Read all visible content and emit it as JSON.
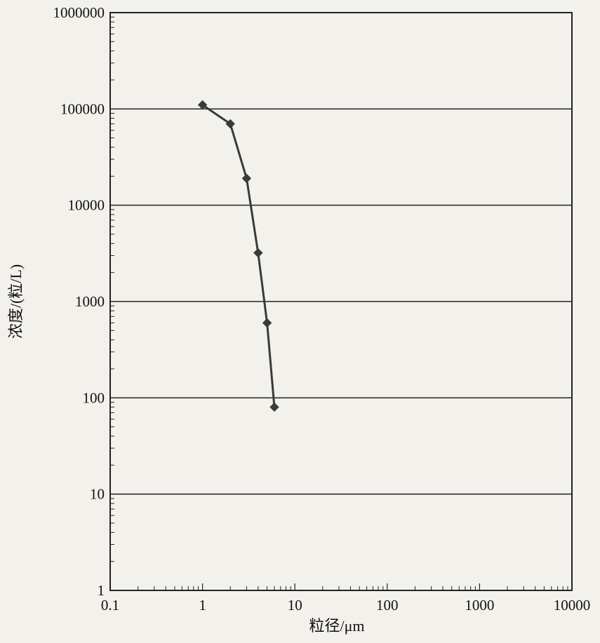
{
  "chart_data": {
    "type": "line",
    "title": "",
    "xlabel": "粒径/μm",
    "ylabel": "浓度/(粒/L)",
    "x_scale": "log",
    "y_scale": "log",
    "xlim": [
      0.1,
      10000
    ],
    "ylim": [
      1,
      1000000
    ],
    "x_ticks": [
      "0.1",
      "1",
      "10",
      "100",
      "1000",
      "10000"
    ],
    "y_ticks": [
      "1",
      "10",
      "100",
      "1000",
      "10000",
      "100000",
      "1000000"
    ],
    "grid": "horizontal major lines",
    "series": [
      {
        "color": "#3a3a3a",
        "marker": "diamond",
        "x": [
          1,
          2,
          3,
          4,
          5,
          6
        ],
        "y": [
          110000,
          70000,
          19000,
          3200,
          600,
          80
        ]
      }
    ]
  }
}
